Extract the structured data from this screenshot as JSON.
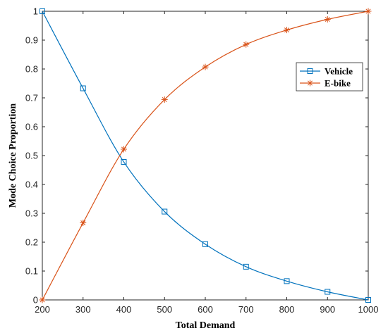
{
  "chart_data": {
    "type": "line",
    "xlabel": "Total Demand",
    "ylabel": "Mode Choice Proportion",
    "xlim": [
      200,
      1000
    ],
    "ylim": [
      0,
      1
    ],
    "x_ticks": [
      "200",
      "300",
      "400",
      "500",
      "600",
      "700",
      "800",
      "900",
      "1000"
    ],
    "y_ticks": [
      "0",
      "0.1",
      "0.2",
      "0.3",
      "0.4",
      "0.5",
      "0.6",
      "0.7",
      "0.8",
      "0.9",
      "1"
    ],
    "x_tick_values": [
      200,
      300,
      400,
      500,
      600,
      700,
      800,
      900,
      1000
    ],
    "y_tick_values": [
      0,
      0.1,
      0.2,
      0.3,
      0.4,
      0.5,
      0.6,
      0.7,
      0.8,
      0.9,
      1
    ],
    "grid": false,
    "legend_position": "top-right",
    "x": [
      200,
      300,
      400,
      500,
      600,
      700,
      800,
      900,
      1000
    ],
    "series": [
      {
        "name": "Vehicle",
        "color": "#0072BD",
        "marker": "square",
        "values": [
          1.0,
          0.733,
          0.478,
          0.306,
          0.193,
          0.115,
          0.065,
          0.028,
          0.0
        ]
      },
      {
        "name": "E-bike",
        "color": "#D95319",
        "marker": "asterisk",
        "values": [
          0.0,
          0.267,
          0.522,
          0.694,
          0.807,
          0.885,
          0.935,
          0.972,
          1.0
        ]
      }
    ]
  }
}
